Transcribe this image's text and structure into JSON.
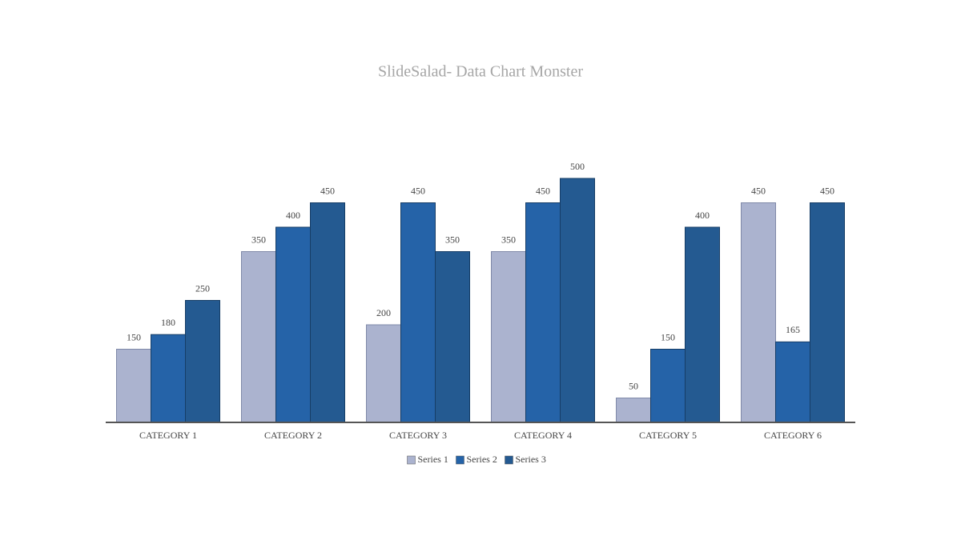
{
  "chart_data": {
    "type": "bar",
    "title": "SlideSalad- Data Chart Monster",
    "categories": [
      "CATEGORY 1",
      "CATEGORY 2",
      "CATEGORY 3",
      "CATEGORY 4",
      "CATEGORY 5",
      "CATEGORY 6"
    ],
    "series": [
      {
        "name": "Series 1",
        "color": "#abb3cf",
        "values": [
          150,
          350,
          200,
          350,
          50,
          450
        ]
      },
      {
        "name": "Series 2",
        "color": "#2563a8",
        "values": [
          180,
          400,
          450,
          450,
          150,
          165
        ]
      },
      {
        "name": "Series 3",
        "color": "#245a91",
        "values": [
          250,
          450,
          350,
          500,
          400,
          450
        ]
      }
    ],
    "ylim": [
      0,
      500
    ],
    "legend": "bottom"
  }
}
